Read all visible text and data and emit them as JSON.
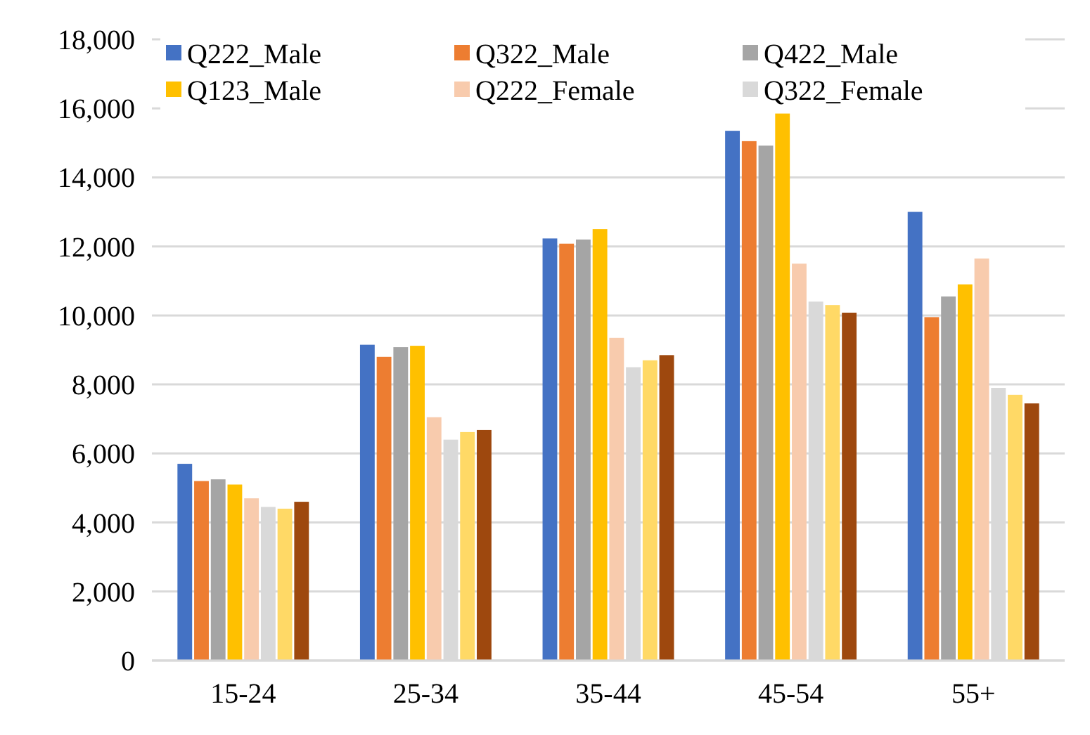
{
  "chart_data": {
    "type": "bar",
    "categories": [
      "15-24",
      "25-34",
      "35-44",
      "45-54",
      "55+"
    ],
    "series": [
      {
        "name": "Q222_Male",
        "color": "#4472c4",
        "values": [
          5700,
          9150,
          12230,
          15350,
          13000
        ]
      },
      {
        "name": "Q322_Male",
        "color": "#ed7d31",
        "values": [
          5200,
          8800,
          12080,
          15050,
          9950
        ]
      },
      {
        "name": "Q422_Male",
        "color": "#a5a5a5",
        "values": [
          5250,
          9080,
          12200,
          14920,
          10550
        ]
      },
      {
        "name": "Q123_Male",
        "color": "#ffc000",
        "values": [
          5100,
          9120,
          12500,
          15850,
          10900
        ]
      },
      {
        "name": "Q222_Female",
        "color": "#f8cbad",
        "values": [
          4700,
          7050,
          9350,
          11500,
          11650
        ]
      },
      {
        "name": "Q322_Female",
        "color": "#d9d9d9",
        "values": [
          4450,
          6400,
          8500,
          10400,
          7900
        ]
      },
      {
        "color": "#ffd966",
        "values": [
          4400,
          6620,
          8700,
          10300,
          7700
        ]
      },
      {
        "color": "#9e480e",
        "values": [
          4600,
          6680,
          8850,
          10080,
          7450
        ]
      }
    ],
    "ylim": [
      0,
      18000
    ],
    "yticks": [
      {
        "value": 0,
        "label": "0"
      },
      {
        "value": 2000,
        "label": "2,000"
      },
      {
        "value": 4000,
        "label": "4,000"
      },
      {
        "value": 6000,
        "label": "6,000"
      },
      {
        "value": 8000,
        "label": "8,000"
      },
      {
        "value": 10000,
        "label": "10,000"
      },
      {
        "value": 12000,
        "label": "12,000"
      },
      {
        "value": 14000,
        "label": "14,000"
      },
      {
        "value": 16000,
        "label": "16,000"
      },
      {
        "value": 18000,
        "label": "18,000"
      }
    ],
    "grid": "y",
    "legend": "top"
  }
}
